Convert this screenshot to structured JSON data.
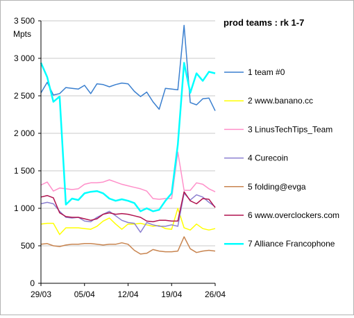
{
  "chart_data": {
    "type": "line",
    "title": "prod teams : rk 1-7",
    "ylabel": "Mpts",
    "xlabel": "",
    "ylim": [
      0,
      3500
    ],
    "yticks": [
      0,
      500,
      1000,
      1500,
      2000,
      2500,
      3000,
      3500
    ],
    "ytick_labels": [
      "0",
      "500",
      "1 000",
      "1 500",
      "2 000",
      "2 500",
      "3 000",
      "3 500"
    ],
    "x": [
      1,
      2,
      3,
      4,
      5,
      6,
      7,
      8,
      9,
      10,
      11,
      12,
      13,
      14,
      15,
      16,
      17,
      18,
      19,
      20,
      21,
      22,
      23,
      24,
      25,
      26,
      27,
      28,
      29
    ],
    "xticks": [
      1,
      8,
      15,
      22,
      29
    ],
    "xtick_labels": [
      "29/03",
      "05/04",
      "12/04",
      "19/04",
      "26/04"
    ],
    "grid": "horizontal",
    "legend_position": "right",
    "series": [
      {
        "name": "1 team #0",
        "color": "#3a7fcf",
        "values": [
          2540,
          2680,
          2510,
          2530,
          2610,
          2600,
          2590,
          2640,
          2530,
          2660,
          2650,
          2620,
          2650,
          2670,
          2660,
          2560,
          2490,
          2550,
          2420,
          2320,
          2600,
          2590,
          2580,
          3440,
          2410,
          2380,
          2460,
          2470,
          2300
        ]
      },
      {
        "name": "2 www.banano.cc",
        "color": "#ffff00",
        "values": [
          790,
          800,
          800,
          650,
          740,
          740,
          740,
          730,
          720,
          760,
          830,
          870,
          790,
          720,
          790,
          790,
          800,
          780,
          760,
          770,
          730,
          720,
          1000,
          740,
          710,
          790,
          730,
          710,
          730
        ]
      },
      {
        "name": "3 LinusTechTips_Team",
        "color": "#ff8fc9",
        "values": [
          1310,
          1350,
          1230,
          1270,
          1260,
          1250,
          1260,
          1320,
          1340,
          1340,
          1350,
          1380,
          1350,
          1320,
          1300,
          1280,
          1260,
          1230,
          1130,
          1120,
          1130,
          1130,
          1750,
          1240,
          1240,
          1340,
          1320,
          1260,
          1220
        ]
      },
      {
        "name": "4 Curecoin",
        "color": "#8b7fd0",
        "values": [
          1060,
          1080,
          1060,
          960,
          880,
          870,
          880,
          830,
          820,
          880,
          920,
          960,
          900,
          840,
          810,
          800,
          680,
          810,
          780,
          760,
          760,
          780,
          760,
          1200,
          1110,
          1180,
          1150,
          1080,
          1020
        ]
      },
      {
        "name": "5 folding@evga",
        "color": "#c8844f",
        "values": [
          520,
          530,
          500,
          490,
          510,
          520,
          520,
          530,
          530,
          520,
          510,
          520,
          520,
          540,
          520,
          440,
          390,
          400,
          450,
          430,
          420,
          420,
          430,
          620,
          460,
          410,
          430,
          440,
          430
        ]
      },
      {
        "name": "6 www.overclockers.com",
        "color": "#b0124e",
        "values": [
          1150,
          1170,
          1140,
          940,
          890,
          880,
          880,
          860,
          840,
          860,
          920,
          940,
          920,
          930,
          920,
          900,
          880,
          830,
          820,
          840,
          840,
          830,
          830,
          1220,
          1100,
          1060,
          1130,
          1120,
          1010
        ]
      },
      {
        "name": "7 Alliance Francophone",
        "color": "#00ffff",
        "values": [
          2940,
          2750,
          2420,
          2490,
          1050,
          1130,
          1110,
          1200,
          1220,
          1230,
          1200,
          1130,
          1100,
          1120,
          1100,
          1070,
          960,
          1000,
          960,
          980,
          1100,
          1200,
          1850,
          2940,
          2540,
          2800,
          2700,
          2820,
          2800
        ]
      }
    ]
  }
}
